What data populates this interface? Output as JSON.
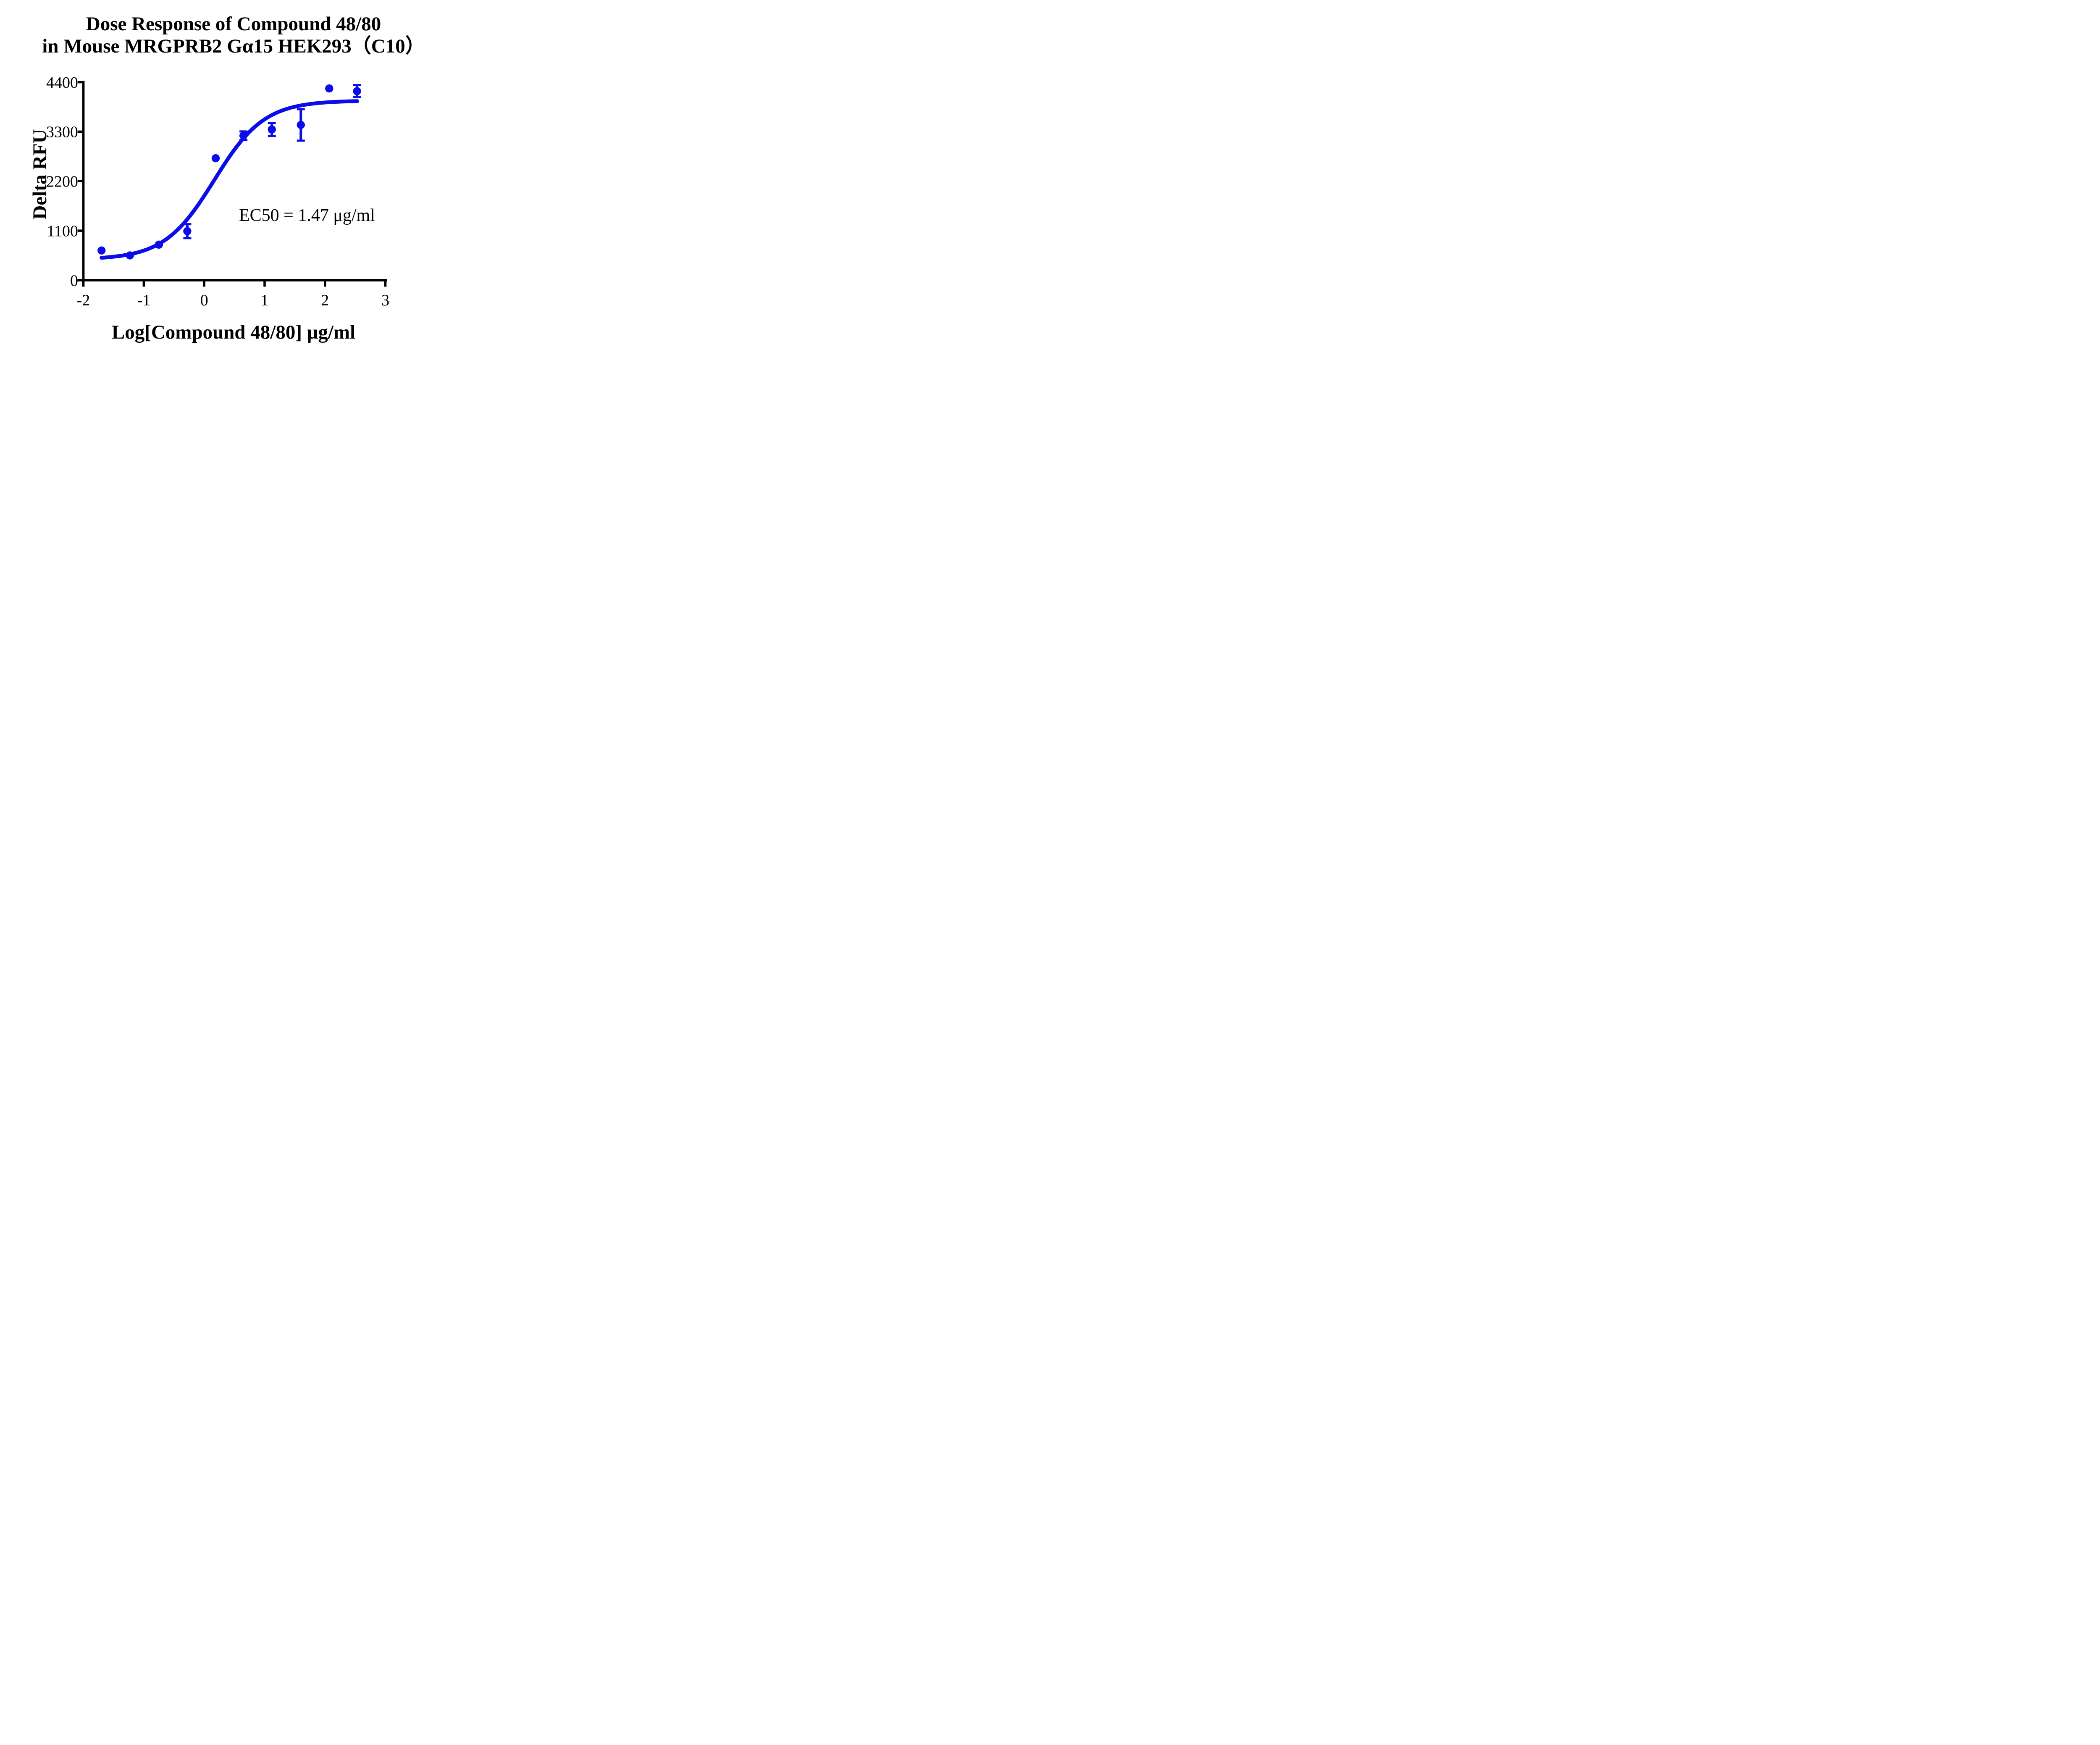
{
  "title": {
    "line1": "Dose Response of Compound 48/80",
    "line2": "in Mouse MRGPRB2 Gα15 HEK293（C10）"
  },
  "annotation": {
    "ec50_label": "EC50 = 1.47 μg/ml"
  },
  "axes": {
    "y": {
      "label": "Delta RFU",
      "range": [
        0,
        4400
      ],
      "ticks": [
        {
          "value": 0,
          "label": "0"
        },
        {
          "value": 1100,
          "label": "1100"
        },
        {
          "value": 2200,
          "label": "2200"
        },
        {
          "value": 3300,
          "label": "3300"
        },
        {
          "value": 4400,
          "label": "4400"
        }
      ]
    },
    "x": {
      "label": "Log[Compound 48/80] μg/ml",
      "range": [
        -2,
        3
      ],
      "ticks": [
        {
          "value": -2,
          "label": "-2"
        },
        {
          "value": -1,
          "label": "-1"
        },
        {
          "value": 0,
          "label": "0"
        },
        {
          "value": 1,
          "label": "1"
        },
        {
          "value": 2,
          "label": "2"
        },
        {
          "value": 3,
          "label": "3"
        }
      ]
    }
  },
  "chart_data": {
    "type": "scatter",
    "title": "Dose Response of Compound 48/80 in Mouse MRGPRB2 Gα15 HEK293（C10）",
    "xlabel": "Log[Compound 48/80] μg/ml",
    "ylabel": "Delta RFU",
    "xlim": [
      -2,
      3
    ],
    "ylim": [
      0,
      4400
    ],
    "grid": false,
    "legend_position": "none",
    "accent_color": "#0c0ce8",
    "ec50_text": "EC50 = 1.47 μg/ml",
    "ec50_value_ug_ml": 1.47,
    "series": [
      {
        "name": "Compound 48/80",
        "color": "#0c0ce8",
        "marker": "circle",
        "x": [
          -1.7,
          -1.23,
          -0.75,
          -0.28,
          0.19,
          0.65,
          1.12,
          1.6,
          2.07,
          2.53
        ],
        "y": [
          660,
          550,
          790,
          1090,
          2710,
          3210,
          3350,
          3450,
          4260,
          4200
        ],
        "yerr": [
          0,
          0,
          0,
          155,
          0,
          95,
          145,
          350,
          0,
          135
        ]
      }
    ],
    "fit_curve": {
      "model": "4PL-sigmoid",
      "bottom": 460,
      "top": 3990,
      "log_ec50": 0.167,
      "hill_slope": 1.05,
      "x_start": -1.7,
      "x_end": 2.535
    }
  }
}
